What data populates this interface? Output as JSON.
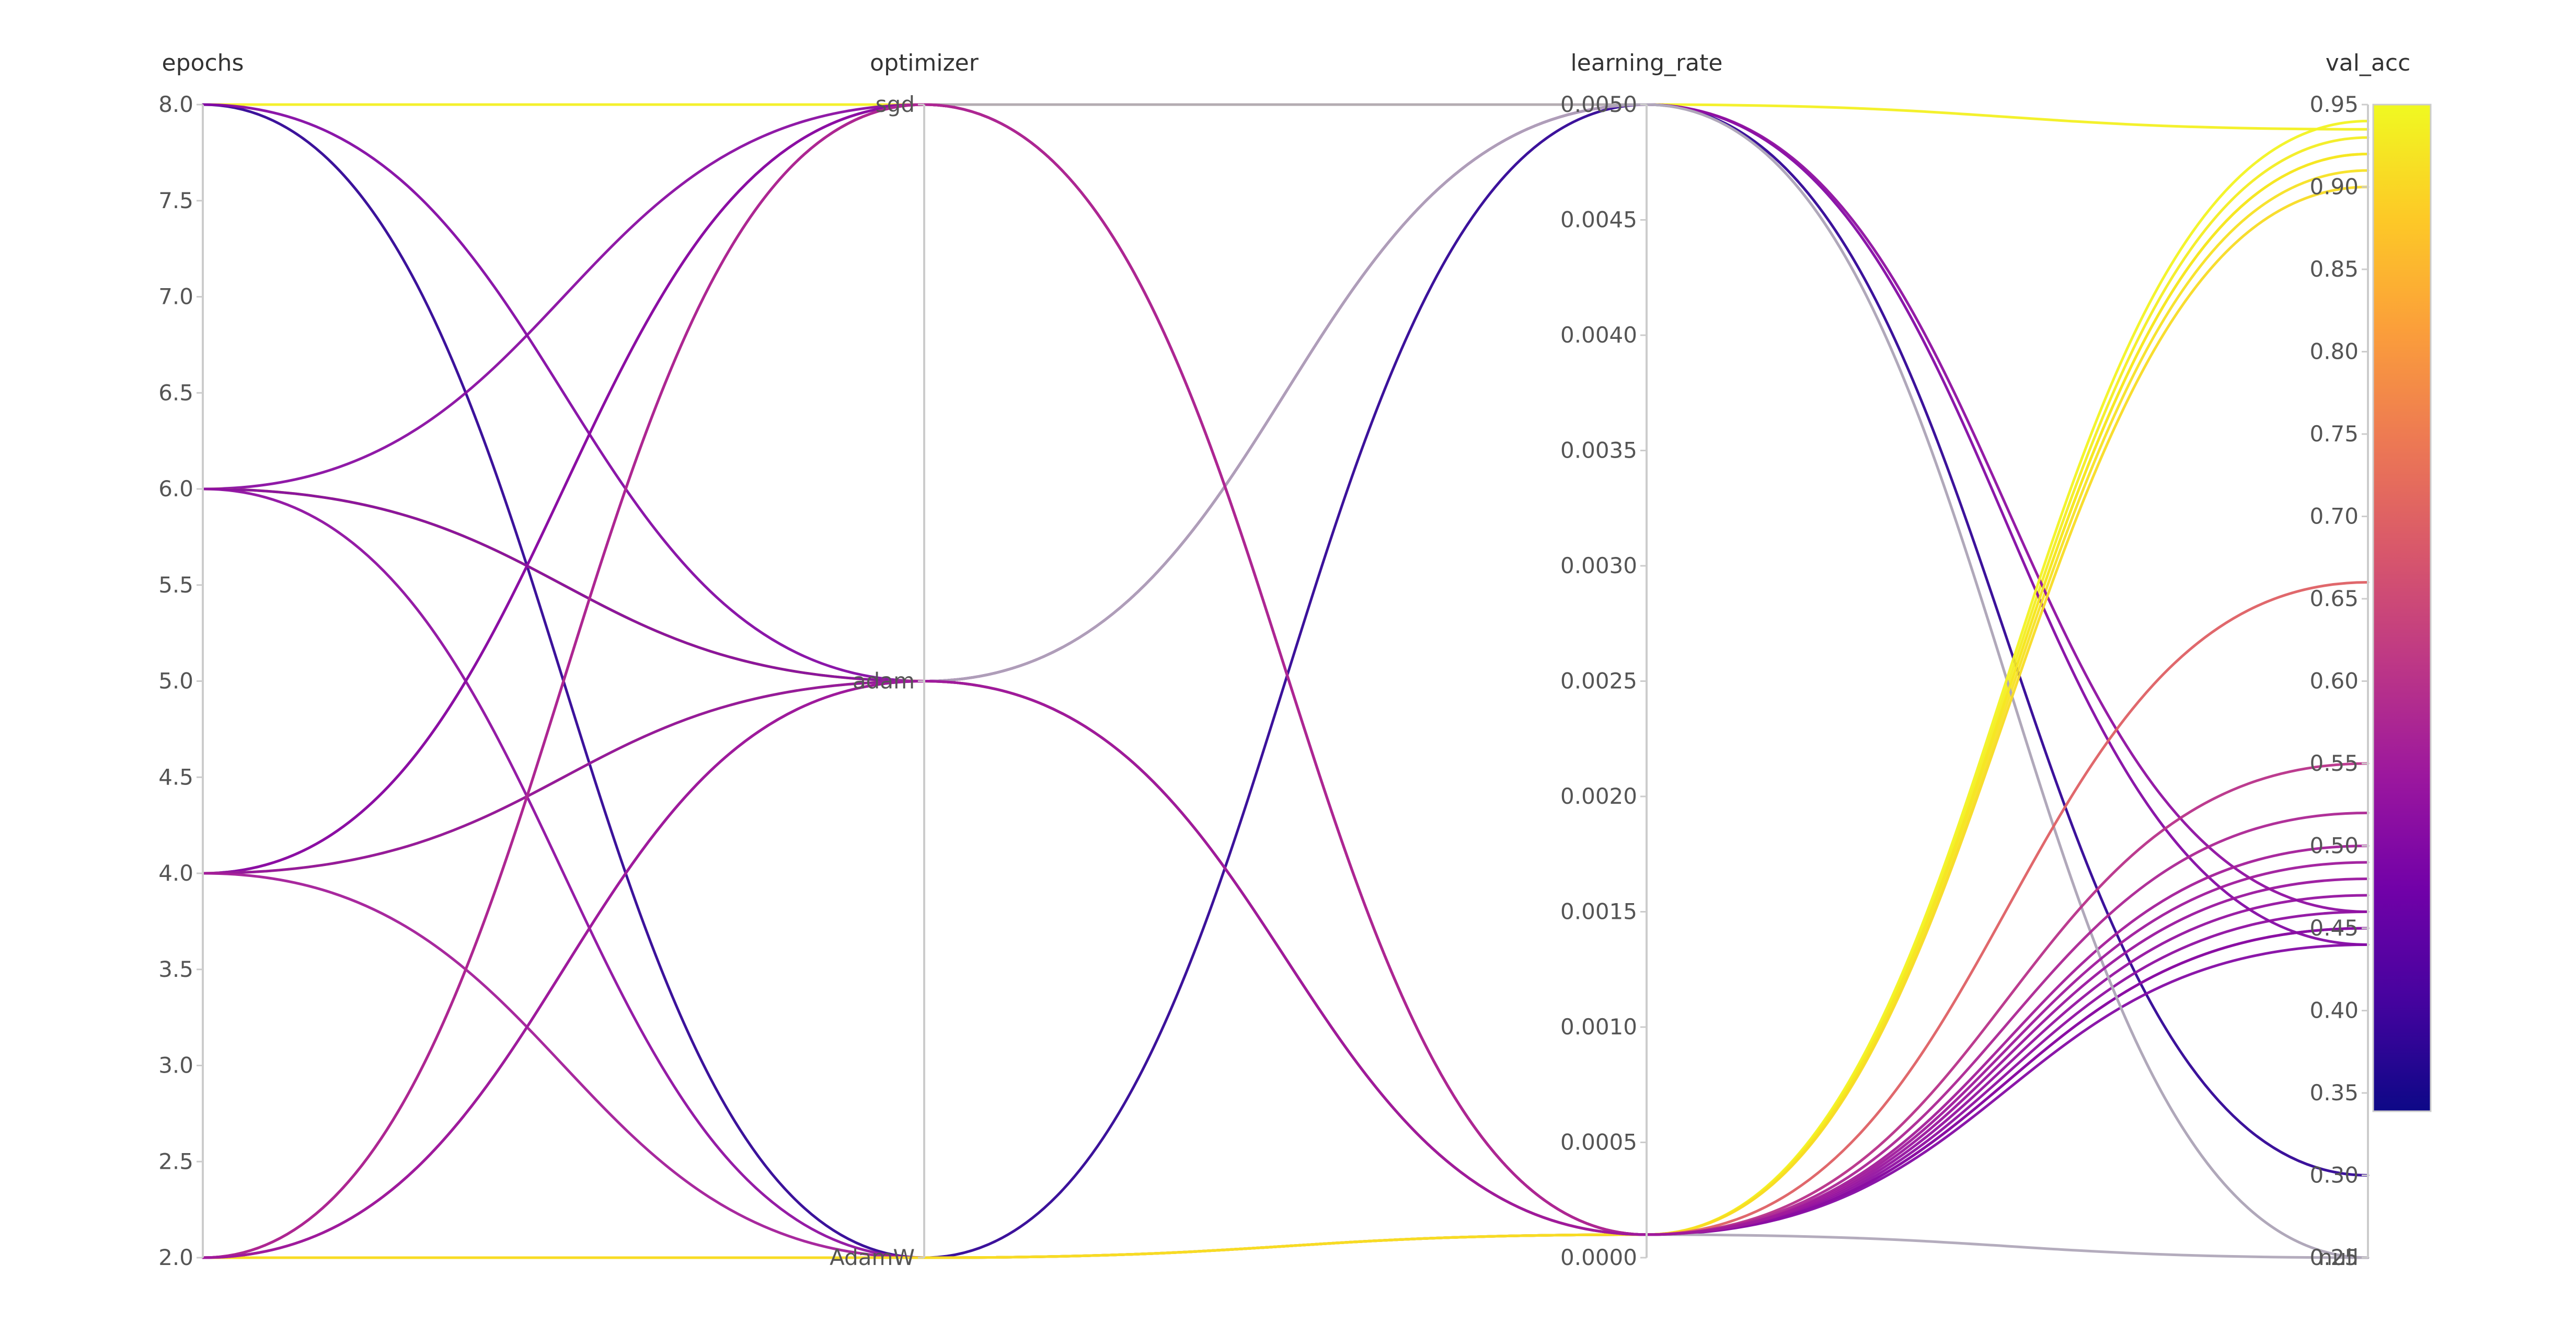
{
  "chart_data": {
    "type": "parallel_coordinates",
    "axes": [
      {
        "key": "epochs",
        "label": "epochs",
        "kind": "numeric",
        "range": [
          2.0,
          8.0
        ],
        "ticks": [
          "2.0",
          "2.5",
          "3.0",
          "3.5",
          "4.0",
          "4.5",
          "5.0",
          "5.5",
          "6.0",
          "6.5",
          "7.0",
          "7.5",
          "8.0"
        ]
      },
      {
        "key": "optimizer",
        "label": "optimizer",
        "kind": "categorical",
        "categories": [
          "AdamW",
          "adam",
          "sgd"
        ]
      },
      {
        "key": "learning_rate",
        "label": "learning_rate",
        "kind": "numeric",
        "range": [
          0.0,
          0.005
        ],
        "ticks": [
          "0.0000",
          "0.0005",
          "0.0010",
          "0.0015",
          "0.0020",
          "0.0025",
          "0.0030",
          "0.0035",
          "0.0040",
          "0.0045",
          "0.0050"
        ]
      },
      {
        "key": "val_acc",
        "label": "val_acc",
        "kind": "numeric",
        "range": [
          0.25,
          0.95
        ],
        "null_label": "null",
        "ticks": [
          "0.25",
          "0.30",
          "0.35",
          "0.40",
          "0.45",
          "0.50",
          "0.55",
          "0.60",
          "0.65",
          "0.70",
          "0.75",
          "0.80",
          "0.85",
          "0.90",
          "0.95"
        ]
      }
    ],
    "colorscale": {
      "name": "plasma",
      "range": [
        0.25,
        0.95
      ],
      "stops": [
        "#0d0887",
        "#46039f",
        "#7201a8",
        "#9c179e",
        "#bd3786",
        "#d8576b",
        "#ed7953",
        "#fb9f3a",
        "#fdca26",
        "#f0f921"
      ],
      "ticks": [
        "0.25",
        "0.30",
        "0.35",
        "0.40",
        "0.45",
        "0.50",
        "0.55",
        "0.60",
        "0.65",
        "0.70",
        "0.75",
        "0.80",
        "0.85",
        "0.90",
        "0.95"
      ]
    },
    "null_color": "#b0a8b9",
    "runs": [
      {
        "epochs": 8,
        "optimizer": "sgd",
        "learning_rate": 0.005,
        "val_acc": 0.935
      },
      {
        "epochs": 8,
        "optimizer": "AdamW",
        "learning_rate": 0.005,
        "val_acc": 0.3
      },
      {
        "epochs": 8,
        "optimizer": "adam",
        "learning_rate": 0.0001,
        "val_acc": 0.44
      },
      {
        "epochs": 6,
        "optimizer": "sgd",
        "learning_rate": 0.0001,
        "val_acc": 0.45
      },
      {
        "epochs": 6,
        "optimizer": "adam",
        "learning_rate": 0.0001,
        "val_acc": 0.93
      },
      {
        "epochs": 6,
        "optimizer": "adam",
        "learning_rate": 0.0001,
        "val_acc": 0.92
      },
      {
        "epochs": 6,
        "optimizer": "adam",
        "learning_rate": 0.005,
        "val_acc": 0.44
      },
      {
        "epochs": 6,
        "optimizer": "AdamW",
        "learning_rate": 0.0001,
        "val_acc": 0.46
      },
      {
        "epochs": 4,
        "optimizer": "sgd",
        "learning_rate": 0.0001,
        "val_acc": 0.47
      },
      {
        "epochs": 4,
        "optimizer": "sgd",
        "learning_rate": 0.0001,
        "val_acc": 0.45
      },
      {
        "epochs": 4,
        "optimizer": "adam",
        "learning_rate": 0.0001,
        "val_acc": 0.91
      },
      {
        "epochs": 4,
        "optimizer": "adam",
        "learning_rate": 0.005,
        "val_acc": 0.46
      },
      {
        "epochs": 4,
        "optimizer": "AdamW",
        "learning_rate": 0.0001,
        "val_acc": 0.5
      },
      {
        "epochs": 2,
        "optimizer": "sgd",
        "learning_rate": 0.005,
        "val_acc": null
      },
      {
        "epochs": 2,
        "optimizer": "adam",
        "learning_rate": 0.0001,
        "val_acc": null
      },
      {
        "epochs": 2,
        "optimizer": "adam",
        "learning_rate": 0.005,
        "val_acc": null
      },
      {
        "epochs": 2,
        "optimizer": "AdamW",
        "learning_rate": 0.0001,
        "val_acc": 0.94
      },
      {
        "epochs": 2,
        "optimizer": "AdamW",
        "learning_rate": 0.0001,
        "val_acc": 0.92
      },
      {
        "epochs": 2,
        "optimizer": "AdamW",
        "learning_rate": 0.0001,
        "val_acc": 0.9
      },
      {
        "epochs": 2,
        "optimizer": "sgd",
        "learning_rate": 0.0001,
        "val_acc": 0.66
      },
      {
        "epochs": 2,
        "optimizer": "sgd",
        "learning_rate": 0.0001,
        "val_acc": 0.55
      },
      {
        "epochs": 2,
        "optimizer": "sgd",
        "learning_rate": 0.0001,
        "val_acc": 0.52
      },
      {
        "epochs": 2,
        "optimizer": "adam",
        "learning_rate": 0.0001,
        "val_acc": 0.48
      },
      {
        "epochs": 2,
        "optimizer": "adam",
        "learning_rate": 0.0001,
        "val_acc": 0.49
      }
    ]
  }
}
